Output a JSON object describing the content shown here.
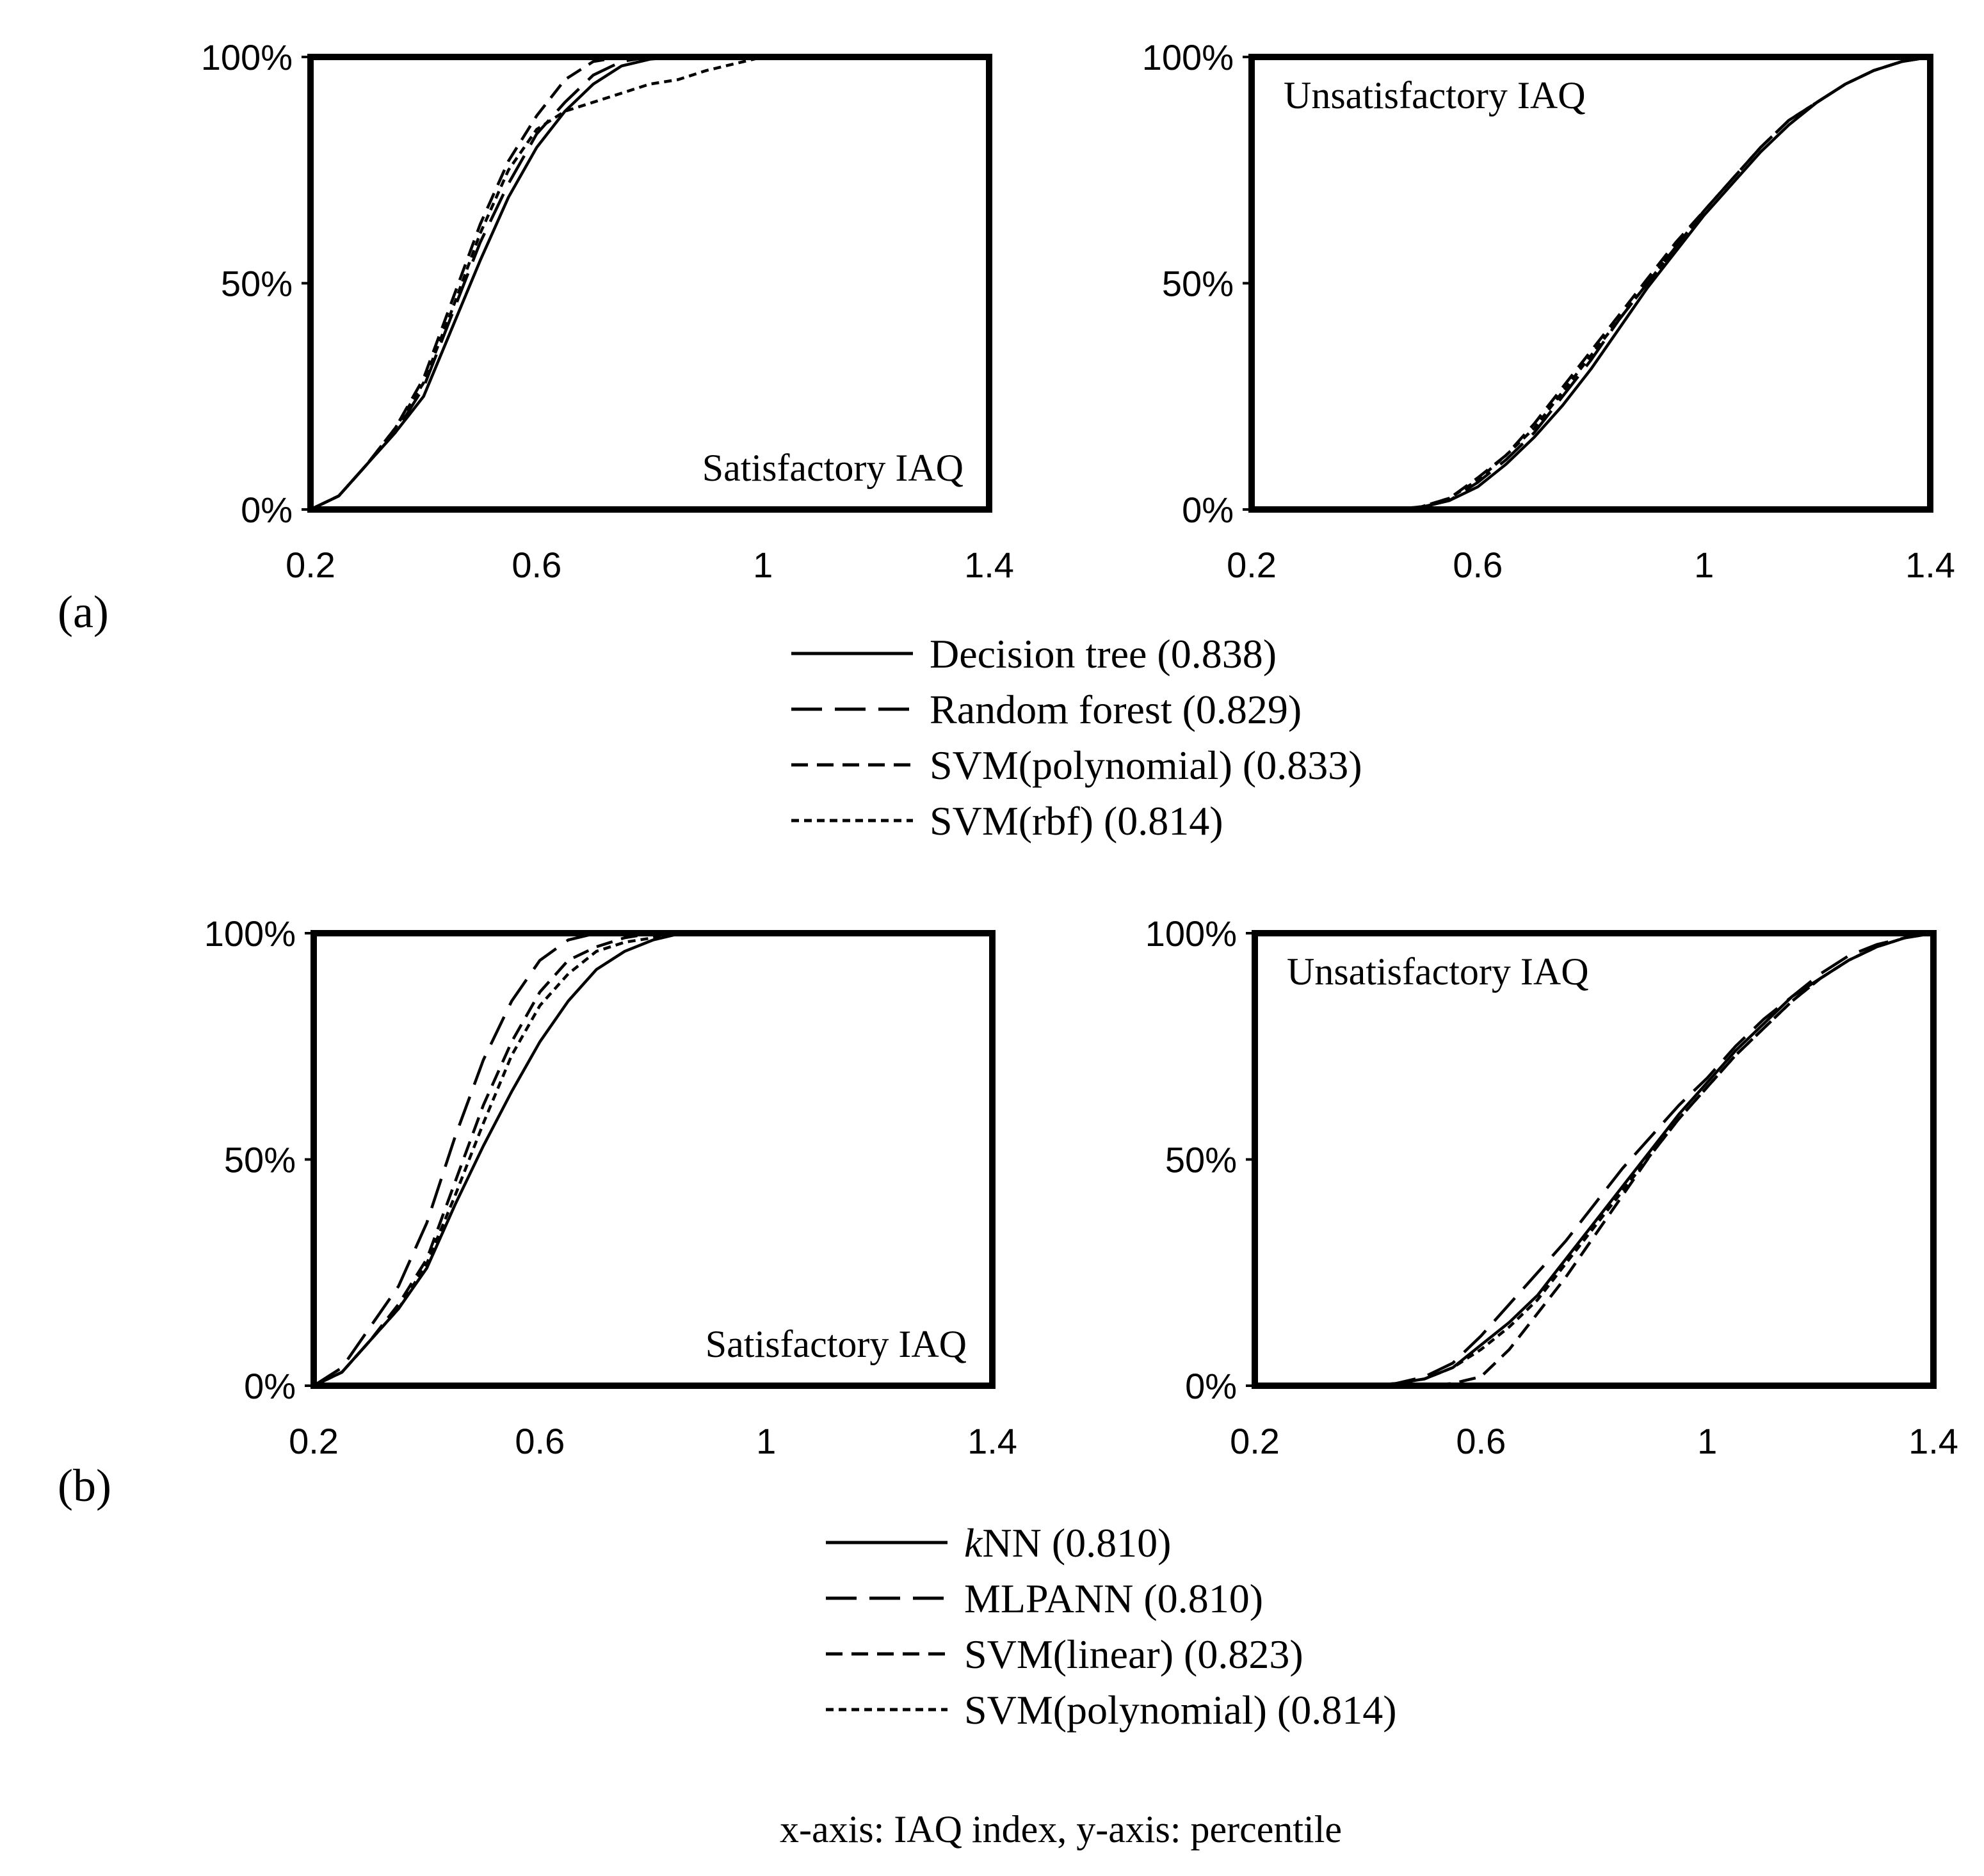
{
  "figure": {
    "caption": "x-axis: IAQ index, y-axis: percentile"
  },
  "groups": [
    {
      "tag": "(a)",
      "legend": [
        {
          "label": "Decision tree (0.838)",
          "dash": "solid"
        },
        {
          "label": "Random forest (0.829)",
          "dash": "long"
        },
        {
          "label": "SVM(polynomial) (0.833)",
          "dash": "medium"
        },
        {
          "label": "SVM(rbf) (0.814)",
          "dash": "short"
        }
      ]
    },
    {
      "tag": "(b)",
      "legend": [
        {
          "label": "kNN (0.810)",
          "label_italic": "k",
          "label_rest": "NN (0.810)",
          "dash": "solid"
        },
        {
          "label": "MLPANN (0.810)",
          "dash": "long"
        },
        {
          "label": "SVM(linear) (0.823)",
          "dash": "medium"
        },
        {
          "label": "SVM(polynomial) (0.814)",
          "dash": "short"
        }
      ]
    }
  ],
  "chart_data": [
    {
      "type": "line",
      "panel": "a-left",
      "annotation": "Satisfactory IAQ",
      "annotation_position": "bottom-right",
      "xlabel": "IAQ index",
      "ylabel": "percentile",
      "xlim": [
        0.2,
        1.4
      ],
      "ylim": [
        0,
        100
      ],
      "xticks": [
        "0.2",
        "0.6",
        "1",
        "1.4"
      ],
      "yticks": [
        "0%",
        "50%",
        "100%"
      ],
      "series": [
        {
          "name": "Decision tree (0.838)",
          "dash": "solid",
          "x": [
            0.2,
            0.25,
            0.3,
            0.35,
            0.4,
            0.45,
            0.5,
            0.55,
            0.6,
            0.65,
            0.7,
            0.75,
            0.8,
            0.85,
            0.9,
            1.0,
            1.4
          ],
          "y": [
            0,
            3,
            10,
            17,
            25,
            40,
            55,
            69,
            80,
            88,
            94,
            98,
            99.5,
            100,
            100,
            100,
            100
          ]
        },
        {
          "name": "Random forest (0.829)",
          "dash": "long",
          "x": [
            0.2,
            0.25,
            0.3,
            0.35,
            0.4,
            0.45,
            0.5,
            0.55,
            0.6,
            0.65,
            0.7,
            0.75,
            0.8,
            0.85,
            0.9,
            1.0,
            1.4
          ],
          "y": [
            0,
            3,
            10,
            17,
            27,
            43,
            59,
            72,
            83,
            90,
            96,
            99,
            100,
            100,
            100,
            100,
            100
          ]
        },
        {
          "name": "SVM(polynomial) (0.833)",
          "dash": "medium",
          "x": [
            0.2,
            0.25,
            0.3,
            0.35,
            0.4,
            0.45,
            0.5,
            0.55,
            0.6,
            0.65,
            0.7,
            0.75,
            0.8,
            0.85,
            0.9,
            1.0,
            1.4
          ],
          "y": [
            0,
            3,
            10,
            18,
            29,
            46,
            63,
            77,
            87,
            95,
            99,
            100,
            100,
            100,
            100,
            100,
            100
          ]
        },
        {
          "name": "SVM(rbf) (0.814)",
          "dash": "short",
          "x": [
            0.2,
            0.25,
            0.3,
            0.35,
            0.4,
            0.45,
            0.5,
            0.55,
            0.6,
            0.65,
            0.7,
            0.75,
            0.8,
            0.85,
            0.9,
            0.95,
            1.0,
            1.4
          ],
          "y": [
            0,
            3,
            10,
            18,
            28,
            44,
            61,
            75,
            84,
            88,
            90,
            92,
            94,
            95,
            97,
            98.5,
            100,
            100
          ]
        }
      ]
    },
    {
      "type": "line",
      "panel": "a-right",
      "annotation": "Unsatisfactory IAQ",
      "annotation_position": "top-left",
      "xlabel": "IAQ index",
      "ylabel": "percentile",
      "xlim": [
        0.2,
        1.4
      ],
      "ylim": [
        0,
        100
      ],
      "xticks": [
        "0.2",
        "0.6",
        "1",
        "1.4"
      ],
      "yticks": [
        "0%",
        "50%",
        "100%"
      ],
      "series": [
        {
          "name": "Decision tree (0.838)",
          "dash": "solid",
          "x": [
            0.2,
            0.45,
            0.5,
            0.55,
            0.6,
            0.65,
            0.7,
            0.75,
            0.8,
            0.85,
            0.9,
            0.95,
            1.0,
            1.05,
            1.1,
            1.15,
            1.2,
            1.25,
            1.3,
            1.35,
            1.4
          ],
          "y": [
            0,
            0,
            0.5,
            2,
            5,
            10,
            16,
            23,
            31,
            40,
            49,
            57,
            65,
            72,
            79,
            85,
            90,
            94,
            97,
            99,
            100
          ]
        },
        {
          "name": "Random forest (0.829)",
          "dash": "long",
          "x": [
            0.2,
            0.45,
            0.5,
            0.55,
            0.6,
            0.65,
            0.7,
            0.75,
            0.8,
            0.85,
            0.9,
            0.95,
            1.0,
            1.05,
            1.1,
            1.15,
            1.2,
            1.25,
            1.3,
            1.35,
            1.4
          ],
          "y": [
            0,
            0,
            0.5,
            2,
            6,
            11,
            17,
            25,
            33,
            42,
            50,
            58,
            66,
            73,
            80,
            86,
            90,
            94,
            97,
            99,
            100
          ]
        },
        {
          "name": "SVM(polynomial) (0.833)",
          "dash": "medium",
          "x": [
            0.2,
            0.45,
            0.5,
            0.55,
            0.6,
            0.65,
            0.7,
            0.75,
            0.8,
            0.85,
            0.9,
            0.95,
            1.0,
            1.05,
            1.1,
            1.15,
            1.2,
            1.25,
            1.3,
            1.35,
            1.4
          ],
          "y": [
            0,
            0,
            0.6,
            2.5,
            7,
            12,
            19,
            27,
            35,
            43,
            51,
            59,
            66,
            73,
            80,
            86,
            90,
            94,
            97,
            99,
            100
          ]
        },
        {
          "name": "SVM(rbf) (0.814)",
          "dash": "short",
          "x": [
            0.2,
            0.45,
            0.5,
            0.55,
            0.6,
            0.65,
            0.7,
            0.75,
            0.8,
            0.85,
            0.9,
            0.95,
            1.0,
            1.05,
            1.1,
            1.15,
            1.2,
            1.25,
            1.3,
            1.35,
            1.4
          ],
          "y": [
            0,
            0,
            0.6,
            2.5,
            6.5,
            12,
            18,
            26,
            34,
            42,
            50,
            58,
            66,
            73,
            80,
            86,
            90,
            94,
            97,
            99,
            100
          ]
        }
      ]
    },
    {
      "type": "line",
      "panel": "b-left",
      "annotation": "Satisfactory IAQ",
      "annotation_position": "bottom-right",
      "xlabel": "IAQ index",
      "ylabel": "percentile",
      "xlim": [
        0.2,
        1.4
      ],
      "ylim": [
        0,
        100
      ],
      "xticks": [
        "0.2",
        "0.6",
        "1",
        "1.4"
      ],
      "yticks": [
        "0%",
        "50%",
        "100%"
      ],
      "series": [
        {
          "name": "kNN (0.810)",
          "dash": "solid",
          "x": [
            0.2,
            0.25,
            0.3,
            0.35,
            0.4,
            0.45,
            0.5,
            0.55,
            0.6,
            0.65,
            0.7,
            0.75,
            0.8,
            0.85,
            0.9,
            1.0,
            1.4
          ],
          "y": [
            0,
            3,
            10,
            17,
            26,
            40,
            53,
            65,
            76,
            85,
            92,
            96,
            98.5,
            100,
            100,
            100,
            100
          ]
        },
        {
          "name": "MLPANN (0.810)",
          "dash": "long",
          "x": [
            0.2,
            0.25,
            0.3,
            0.35,
            0.4,
            0.45,
            0.5,
            0.55,
            0.6,
            0.65,
            0.7,
            0.75,
            0.8,
            1.0,
            1.4
          ],
          "y": [
            0,
            4,
            13,
            22,
            36,
            55,
            72,
            85,
            94,
            98.5,
            100,
            100,
            100,
            100,
            100
          ]
        },
        {
          "name": "SVM(linear) (0.823)",
          "dash": "medium",
          "x": [
            0.2,
            0.25,
            0.3,
            0.35,
            0.4,
            0.45,
            0.5,
            0.55,
            0.6,
            0.65,
            0.7,
            0.75,
            0.8,
            0.85,
            1.0,
            1.4
          ],
          "y": [
            0,
            3,
            10,
            18,
            28,
            45,
            62,
            76,
            87,
            94,
            97,
            99,
            100,
            100,
            100,
            100
          ]
        },
        {
          "name": "SVM(polynomial) (0.814)",
          "dash": "short",
          "x": [
            0.2,
            0.25,
            0.3,
            0.35,
            0.4,
            0.45,
            0.5,
            0.55,
            0.6,
            0.65,
            0.7,
            0.75,
            0.8,
            0.85,
            1.0,
            1.4
          ],
          "y": [
            0,
            3,
            10,
            17,
            27,
            42,
            58,
            73,
            84,
            91,
            96,
            98,
            99,
            100,
            100,
            100
          ]
        }
      ]
    },
    {
      "type": "line",
      "panel": "b-right",
      "annotation": "Unsatisfactory IAQ",
      "annotation_position": "top-left",
      "xlabel": "IAQ index",
      "ylabel": "percentile",
      "xlim": [
        0.2,
        1.4
      ],
      "ylim": [
        0,
        100
      ],
      "xticks": [
        "0.2",
        "0.6",
        "1",
        "1.4"
      ],
      "yticks": [
        "0%",
        "50%",
        "100%"
      ],
      "series": [
        {
          "name": "kNN (0.810)",
          "dash": "solid",
          "x": [
            0.2,
            0.4,
            0.45,
            0.5,
            0.55,
            0.6,
            0.65,
            0.7,
            0.75,
            0.8,
            0.85,
            0.9,
            0.95,
            1.0,
            1.05,
            1.1,
            1.15,
            1.2,
            1.25,
            1.3,
            1.35,
            1.4
          ],
          "y": [
            0,
            0,
            0.5,
            1.5,
            4,
            9,
            14,
            20,
            28,
            36,
            44,
            52,
            60,
            67,
            74,
            80,
            86,
            90,
            94,
            97,
            99,
            100
          ]
        },
        {
          "name": "MLPANN (0.810)",
          "dash": "long",
          "x": [
            0.2,
            0.4,
            0.45,
            0.5,
            0.55,
            0.6,
            0.65,
            0.7,
            0.75,
            0.8,
            0.85,
            0.9,
            0.95,
            1.0,
            1.05,
            1.1,
            1.15,
            1.2,
            1.25,
            1.3,
            1.35,
            1.4
          ],
          "y": [
            0,
            0,
            0.5,
            2,
            5,
            11,
            18,
            25,
            32,
            40,
            48,
            55,
            62,
            68,
            75,
            81,
            86,
            91,
            95,
            97.5,
            99,
            100
          ]
        },
        {
          "name": "SVM(linear) (0.823)",
          "dash": "medium",
          "x": [
            0.2,
            0.5,
            0.55,
            0.6,
            0.65,
            0.7,
            0.75,
            0.8,
            0.85,
            0.9,
            0.95,
            1.0,
            1.05,
            1.1,
            1.15,
            1.2,
            1.25,
            1.3,
            1.35,
            1.4
          ],
          "y": [
            0,
            0,
            0.5,
            2,
            8,
            16,
            24,
            33,
            42,
            51,
            59,
            66,
            73,
            79,
            85,
            90,
            94,
            97,
            99,
            100
          ]
        },
        {
          "name": "SVM(polynomial) (0.814)",
          "dash": "short",
          "x": [
            0.2,
            0.4,
            0.45,
            0.5,
            0.55,
            0.6,
            0.65,
            0.7,
            0.75,
            0.8,
            0.85,
            0.9,
            0.95,
            1.0,
            1.05,
            1.1,
            1.15,
            1.2,
            1.25,
            1.3,
            1.35,
            1.4
          ],
          "y": [
            0,
            0,
            0.5,
            1.5,
            4,
            8,
            13,
            19,
            27,
            35,
            43,
            51,
            59,
            66,
            73,
            79,
            85,
            90,
            94,
            97,
            99,
            100
          ]
        }
      ]
    }
  ]
}
